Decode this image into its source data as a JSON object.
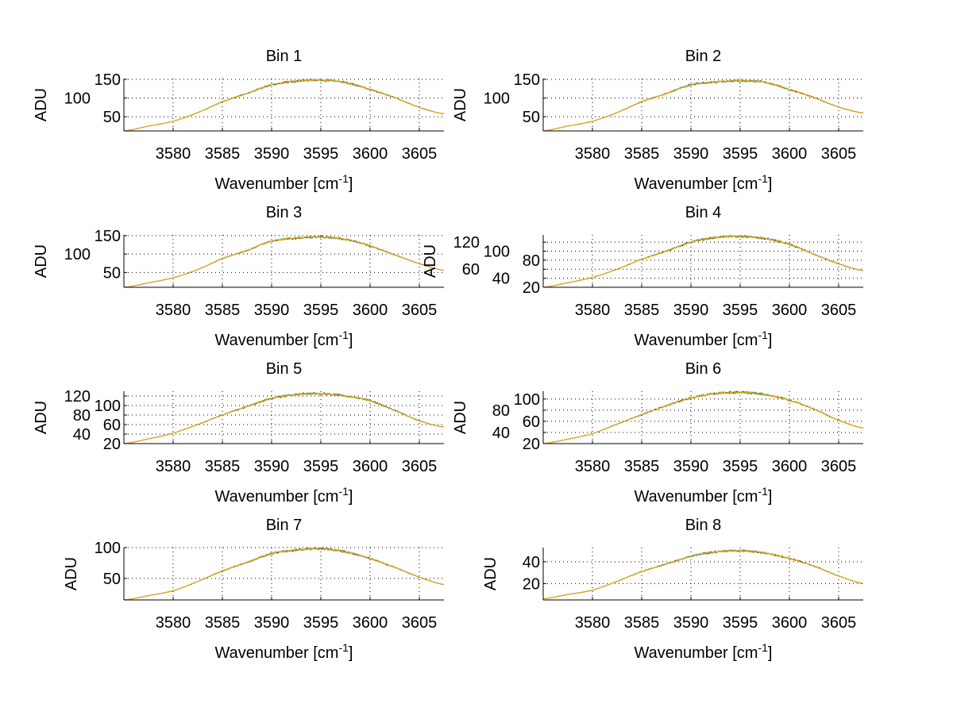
{
  "chart_data": [
    {
      "type": "line",
      "title": "Bin 1",
      "xlabel": "Wavenumber [cm",
      "xlabel_sup": "-1",
      "xlabel_end": "]",
      "ylabel": "ADU",
      "xlim": [
        3575,
        3607.5
      ],
      "ylim": [
        12,
        152
      ],
      "xticks": [
        3580,
        3585,
        3590,
        3595,
        3600,
        3605
      ],
      "yticks": [
        50,
        100,
        150
      ],
      "grid": true,
      "x": [
        3575,
        3577.5,
        3580,
        3582.5,
        3585,
        3587.5,
        3590,
        3592.5,
        3595,
        3597.5,
        3600,
        3602.5,
        3605,
        3607.5
      ],
      "y": [
        12,
        25,
        38,
        61,
        90,
        112,
        135,
        145,
        148,
        141,
        123,
        101,
        75,
        58
      ]
    },
    {
      "type": "line",
      "title": "Bin 2",
      "xlabel": "Wavenumber [cm",
      "xlabel_sup": "-1",
      "xlabel_end": "]",
      "ylabel": "ADU",
      "xlim": [
        3575,
        3607.5
      ],
      "ylim": [
        12,
        152
      ],
      "xticks": [
        3580,
        3585,
        3590,
        3595,
        3600,
        3605
      ],
      "yticks": [
        50,
        100,
        150
      ],
      "grid": true,
      "x": [
        3575,
        3577.5,
        3580,
        3582.5,
        3585,
        3587.5,
        3590,
        3592.5,
        3595,
        3597.5,
        3600,
        3602.5,
        3605,
        3607.5
      ],
      "y": [
        12,
        25,
        38,
        61,
        90,
        112,
        135,
        143,
        146,
        142,
        123,
        101,
        76,
        60
      ]
    },
    {
      "type": "line",
      "title": "Bin 3",
      "xlabel": "Wavenumber [cm",
      "xlabel_sup": "-1",
      "xlabel_end": "]",
      "ylabel": "ADU",
      "xlim": [
        3575,
        3607.5
      ],
      "ylim": [
        10,
        152
      ],
      "xticks": [
        3580,
        3585,
        3590,
        3595,
        3600,
        3605
      ],
      "yticks": [
        50,
        100,
        150
      ],
      "grid": true,
      "x": [
        3575,
        3577.5,
        3580,
        3582.5,
        3585,
        3587.5,
        3590,
        3592.5,
        3595,
        3597.5,
        3600,
        3602.5,
        3605,
        3607.5
      ],
      "y": [
        10,
        22,
        36,
        58,
        88,
        110,
        135,
        143,
        146,
        140,
        122,
        98,
        74,
        56
      ]
    },
    {
      "type": "line",
      "title": "Bin 4",
      "xlabel": "Wavenumber [cm",
      "xlabel_sup": "-1",
      "xlabel_end": "]",
      "ylabel": "ADU",
      "xlim": [
        3575,
        3607.5
      ],
      "ylim": [
        20,
        136
      ],
      "xticks": [
        3580,
        3585,
        3590,
        3595,
        3600,
        3605
      ],
      "yticks": [
        20,
        40,
        60,
        80,
        100,
        120
      ],
      "grid": true,
      "x": [
        3575,
        3577.5,
        3580,
        3582.5,
        3585,
        3587.5,
        3590,
        3592.5,
        3595,
        3597.5,
        3600,
        3602.5,
        3605,
        3607.5
      ],
      "y": [
        20,
        30,
        42,
        60,
        82,
        100,
        120,
        130,
        133,
        128,
        115,
        93,
        72,
        57
      ]
    },
    {
      "type": "line",
      "title": "Bin 5",
      "xlabel": "Wavenumber [cm",
      "xlabel_sup": "-1",
      "xlabel_end": "]",
      "ylabel": "ADU",
      "xlim": [
        3575,
        3607.5
      ],
      "ylim": [
        20,
        130
      ],
      "xticks": [
        3580,
        3585,
        3590,
        3595,
        3600,
        3605
      ],
      "yticks": [
        20,
        40,
        60,
        80,
        100,
        120
      ],
      "grid": true,
      "x": [
        3575,
        3577.5,
        3580,
        3582.5,
        3585,
        3587.5,
        3590,
        3592.5,
        3595,
        3597.5,
        3600,
        3602.5,
        3605,
        3607.5
      ],
      "y": [
        20,
        30,
        42,
        60,
        80,
        98,
        115,
        123,
        125,
        120,
        110,
        90,
        68,
        55
      ]
    },
    {
      "type": "line",
      "title": "Bin 6",
      "xlabel": "Wavenumber [cm",
      "xlabel_sup": "-1",
      "xlabel_end": "]",
      "ylabel": "ADU",
      "xlim": [
        3575,
        3607.5
      ],
      "ylim": [
        20,
        114
      ],
      "xticks": [
        3580,
        3585,
        3590,
        3595,
        3600,
        3605
      ],
      "yticks": [
        20,
        40,
        60,
        80,
        100
      ],
      "grid": true,
      "x": [
        3575,
        3577.5,
        3580,
        3582.5,
        3585,
        3587.5,
        3590,
        3592.5,
        3595,
        3597.5,
        3600,
        3602.5,
        3605,
        3607.5
      ],
      "y": [
        20,
        28,
        38,
        55,
        72,
        88,
        102,
        110,
        112,
        108,
        98,
        82,
        62,
        48
      ]
    },
    {
      "type": "line",
      "title": "Bin 7",
      "xlabel": "Wavenumber [cm",
      "xlabel_sup": "-1",
      "xlabel_end": "]",
      "ylabel": "ADU",
      "xlim": [
        3575,
        3607.5
      ],
      "ylim": [
        15,
        100
      ],
      "xticks": [
        3580,
        3585,
        3590,
        3595,
        3600,
        3605
      ],
      "yticks": [
        50,
        100
      ],
      "grid": true,
      "x": [
        3575,
        3577.5,
        3580,
        3582.5,
        3585,
        3587.5,
        3590,
        3592.5,
        3595,
        3597.5,
        3600,
        3602.5,
        3605,
        3607.5
      ],
      "y": [
        15,
        22,
        30,
        45,
        62,
        76,
        90,
        96,
        98,
        93,
        82,
        68,
        52,
        40
      ]
    },
    {
      "type": "line",
      "title": "Bin 8",
      "xlabel": "Wavenumber [cm",
      "xlabel_sup": "-1",
      "xlabel_end": "]",
      "ylabel": "ADU",
      "xlim": [
        3575,
        3607.5
      ],
      "ylim": [
        5,
        53
      ],
      "xticks": [
        3580,
        3585,
        3590,
        3595,
        3600,
        3605
      ],
      "yticks": [
        20,
        40
      ],
      "grid": true,
      "x": [
        3575,
        3577.5,
        3580,
        3582.5,
        3585,
        3587.5,
        3590,
        3592.5,
        3595,
        3597.5,
        3600,
        3602.5,
        3605,
        3607.5
      ],
      "y": [
        6,
        10,
        14,
        22,
        31,
        38,
        45,
        49,
        50,
        48,
        43,
        36,
        27,
        20
      ]
    }
  ],
  "series_colors": [
    "#1a1a40",
    "#40b060",
    "#ffa500"
  ]
}
